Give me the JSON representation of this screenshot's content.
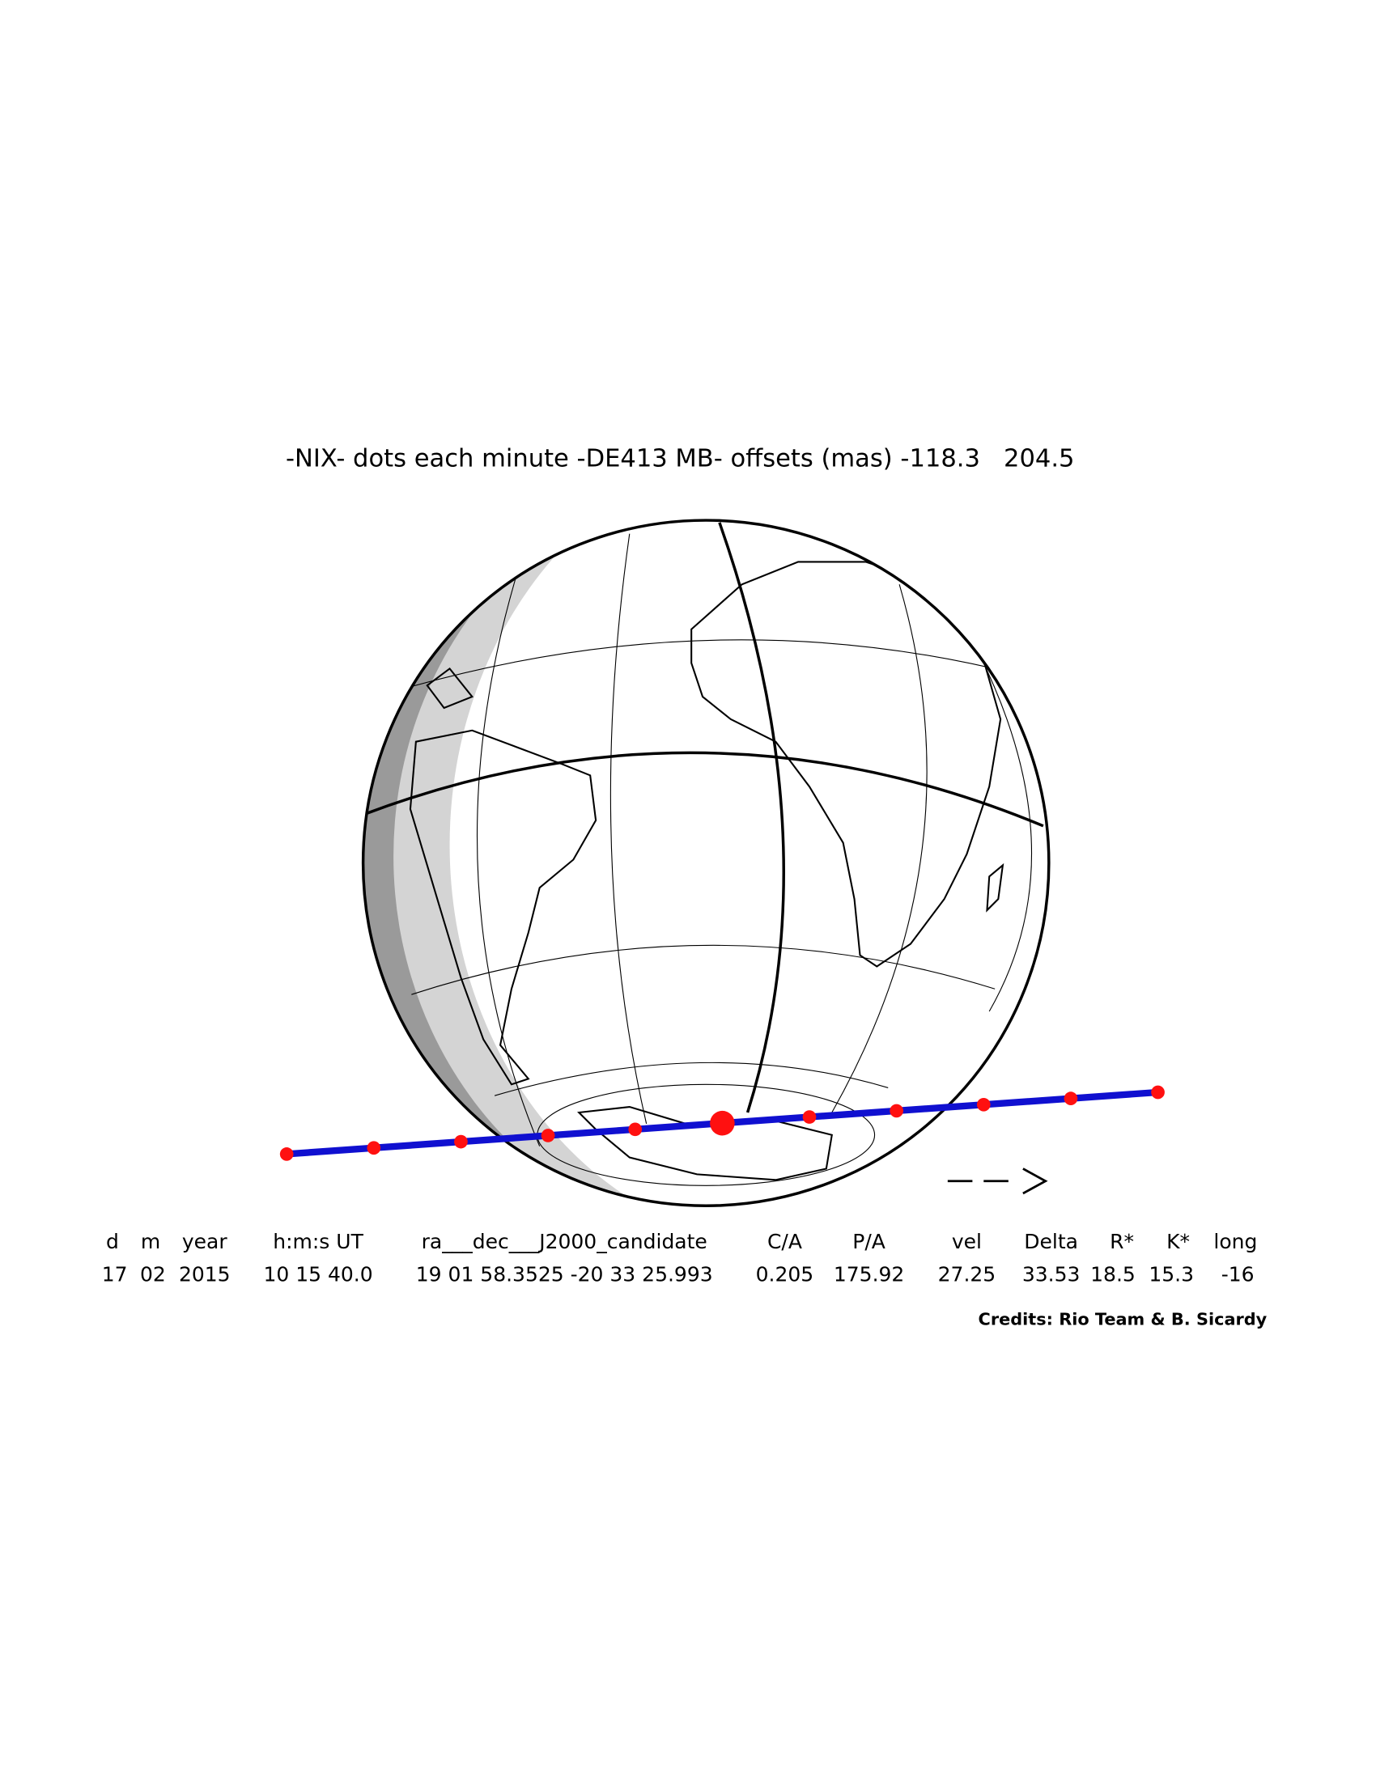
{
  "title": "-NIX- dots each minute -DE413 MB- offsets (mas) -118.3   204.5",
  "table": {
    "headers": [
      "d",
      "m",
      "year",
      "h:m:s UT",
      "ra___dec___J2000_candidate",
      "C/A",
      "P/A",
      "vel",
      "Delta",
      "R*",
      "K*",
      "long"
    ],
    "rows": [
      [
        "17",
        "02",
        "2015",
        "10 15 40.0",
        "19 01 58.3525 -20 33 25.993",
        "0.205",
        "175.92",
        "27.25",
        "33.53",
        "18.5",
        "15.3",
        "-16"
      ]
    ]
  },
  "credits": "Credits: Rio Team & B. Sicardy"
}
